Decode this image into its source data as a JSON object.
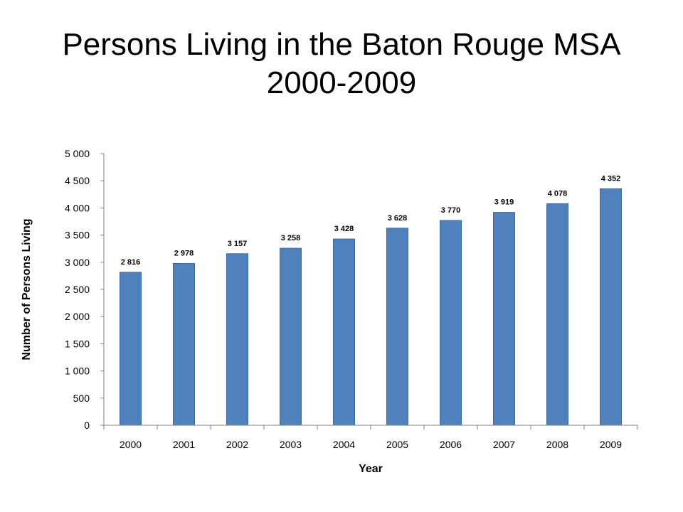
{
  "title": {
    "line1": "Persons Living in the Baton Rouge MSA",
    "line2": "2000-2009"
  },
  "colors": {
    "bar": "#4f81bd",
    "bar_edge": "#3a6aa5",
    "axis": "#868686"
  },
  "chart_data": {
    "type": "bar",
    "categories": [
      "2000",
      "2001",
      "2002",
      "2003",
      "2004",
      "2005",
      "2006",
      "2007",
      "2008",
      "2009"
    ],
    "values": [
      2816,
      2978,
      3157,
      3258,
      3428,
      3628,
      3770,
      3919,
      4078,
      4352
    ],
    "data_labels": [
      "2 816",
      "2 978",
      "3 157",
      "3 258",
      "3 428",
      "3 628",
      "3 770",
      "3 919",
      "4 078",
      "4 352"
    ],
    "xlabel": "Year",
    "ylabel": "Number of Persons Living",
    "ylim": [
      0,
      5000
    ],
    "y_ticks": [
      0,
      500,
      1000,
      1500,
      2000,
      2500,
      3000,
      3500,
      4000,
      4500,
      5000
    ],
    "y_tick_labels": [
      "0",
      "500",
      "1 000",
      "1 500",
      "2 000",
      "2 500",
      "3 000",
      "3 500",
      "4 000",
      "4 500",
      "5 000"
    ],
    "grid": false,
    "legend": "none"
  }
}
